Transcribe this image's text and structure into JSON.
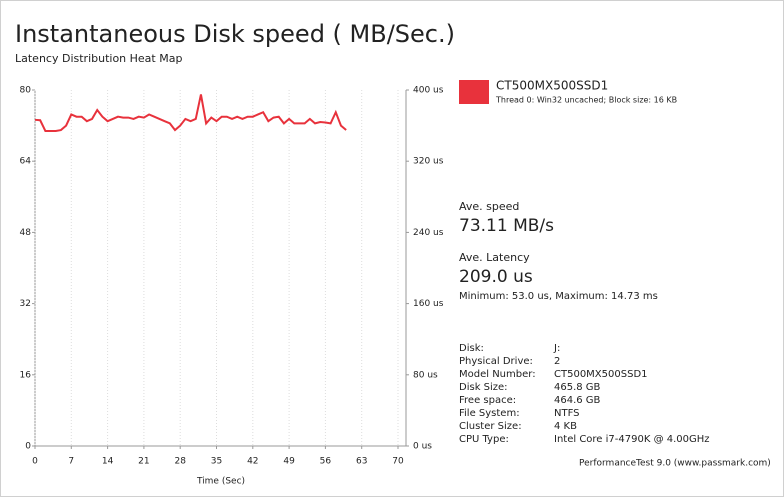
{
  "chart_data": {
    "type": "line",
    "title": "Instantaneous Disk speed ( MB/Sec.)",
    "subtitle": "Latency Distribution Heat Map",
    "x_label": "Time (Sec)",
    "xlim": [
      0,
      70
    ],
    "xticks": [
      0,
      7,
      14,
      21,
      28,
      35,
      42,
      49,
      56,
      63,
      70
    ],
    "ylim": [
      0,
      80
    ],
    "yticks": [
      0,
      16,
      32,
      48,
      64,
      80
    ],
    "y2lim": [
      0,
      400
    ],
    "y2ticks": [
      {
        "value": 0,
        "label": "0 us"
      },
      {
        "value": 80,
        "label": "80 us"
      },
      {
        "value": 160,
        "label": "160 us"
      },
      {
        "value": 240,
        "label": "240 us"
      },
      {
        "value": 320,
        "label": "320 us"
      },
      {
        "value": 400,
        "label": "400 us"
      }
    ],
    "grid": true,
    "x": [
      0,
      1,
      2,
      3,
      4,
      5,
      6,
      7,
      8,
      9,
      10,
      11,
      12,
      13,
      14,
      15,
      16,
      17,
      18,
      19,
      20,
      21,
      22,
      23,
      24,
      25,
      26,
      27,
      28,
      29,
      30,
      31,
      32,
      33,
      34,
      35,
      36,
      37,
      38,
      39,
      40,
      41,
      42,
      43,
      44,
      45,
      46,
      47,
      48,
      49,
      50,
      51,
      52,
      53,
      54,
      55,
      56,
      57,
      58,
      59,
      60
    ],
    "series": [
      {
        "name": "CT500MX500SSD1",
        "description": "Thread 0: Win32 uncached; Block size: 16 KB",
        "color": "#e8323c",
        "values": [
          73.3,
          73.2,
          70.8,
          70.8,
          70.8,
          71,
          72,
          74.5,
          74,
          74,
          73,
          73.5,
          75.5,
          74,
          73,
          73.5,
          74,
          73.8,
          73.8,
          73.5,
          74,
          73.8,
          74.5,
          74,
          73.5,
          73,
          72.5,
          71,
          72,
          73.5,
          73,
          73.5,
          79,
          72.5,
          73.8,
          73,
          74,
          74,
          73.5,
          74,
          73.5,
          74,
          74,
          74.5,
          75,
          73,
          73.8,
          74,
          72.5,
          73.5,
          72.5,
          72.5,
          72.5,
          73.5,
          72.5,
          72.8,
          72.7,
          72.5,
          75,
          72,
          71
        ]
      }
    ]
  },
  "info": {
    "speed_label": "Ave. speed",
    "speed": "73.11 MB/s",
    "latency_label": "Ave. Latency",
    "latency": "209.0 us",
    "latency_range": "Minimum: 53.0 us, Maximum: 14.73 ms",
    "details": [
      [
        "Disk:",
        "J:"
      ],
      [
        "Physical Drive:",
        "2"
      ],
      [
        "Model Number:",
        "CT500MX500SSD1"
      ],
      [
        "Disk Size:",
        "465.8 GB"
      ],
      [
        "Free space:",
        "464.6 GB"
      ],
      [
        "File System:",
        "NTFS"
      ],
      [
        "Cluster Size:",
        "4 KB"
      ],
      [
        "CPU Type:",
        "Intel Core i7-4790K @ 4.00GHz"
      ]
    ],
    "footer": "PerformanceTest 9.0 (www.passmark.com)"
  }
}
